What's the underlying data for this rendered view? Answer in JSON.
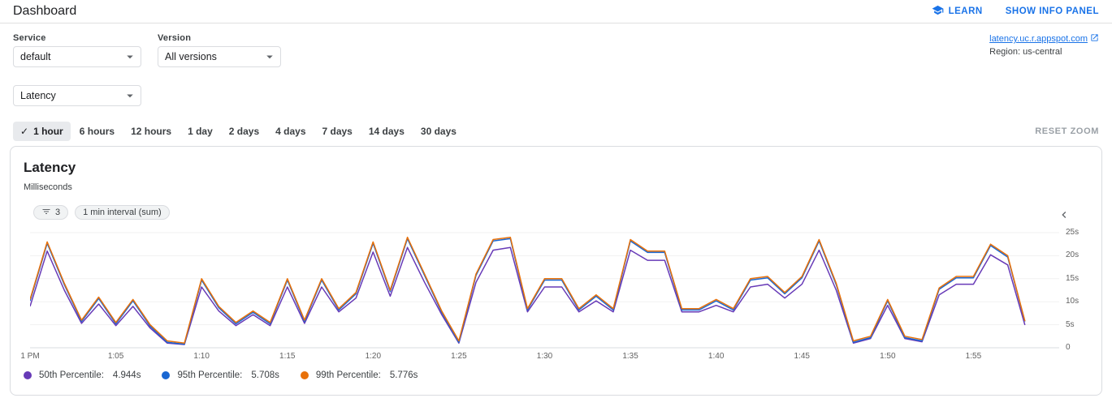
{
  "colors": {
    "accent": "#1a73e8",
    "p50": "#673ab7",
    "p95": "#1967d2",
    "p99": "#e8710a"
  },
  "header": {
    "title": "Dashboard",
    "learn_label": "LEARN",
    "info_panel_label": "SHOW INFO PANEL"
  },
  "filters": {
    "service": {
      "label": "Service",
      "value": "default"
    },
    "version": {
      "label": "Version",
      "value": "All versions"
    },
    "metric": {
      "value": "Latency"
    },
    "app_link": {
      "text": "latency.uc.r.appspot.com"
    },
    "region": "Region: us-central"
  },
  "time_ranges": {
    "options": [
      "1 hour",
      "6 hours",
      "12 hours",
      "1 day",
      "2 days",
      "4 days",
      "7 days",
      "14 days",
      "30 days"
    ],
    "selected": "1 hour",
    "reset_label": "RESET ZOOM"
  },
  "chart": {
    "title": "Latency",
    "unit": "Milliseconds",
    "filter_chip_count": "3",
    "interval_chip": "1 min interval (sum)",
    "legend": [
      {
        "label": "50th Percentile:",
        "value": "4.944s",
        "color": "#673ab7"
      },
      {
        "label": "95th Percentile:",
        "value": "5.708s",
        "color": "#1967d2"
      },
      {
        "label": "99th Percentile:",
        "value": "5.776s",
        "color": "#e8710a"
      }
    ]
  },
  "chart_data": {
    "type": "line",
    "title": "Latency",
    "ylabel": "Milliseconds",
    "unit": "seconds",
    "grid": "horizontal",
    "legend_position": "bottom",
    "x_start_label": "1 PM",
    "x_step_minutes": 1,
    "x_domain_minutes": [
      0,
      60
    ],
    "ylim": [
      0,
      25
    ],
    "y_ticks": [
      {
        "v": 0,
        "label": "0"
      },
      {
        "v": 5,
        "label": "5s"
      },
      {
        "v": 10,
        "label": "10s"
      },
      {
        "v": 15,
        "label": "15s"
      },
      {
        "v": 20,
        "label": "20s"
      },
      {
        "v": 25,
        "label": "25s"
      }
    ],
    "x_ticks": [
      {
        "m": 0,
        "label": "1 PM"
      },
      {
        "m": 5,
        "label": "1:05"
      },
      {
        "m": 10,
        "label": "1:10"
      },
      {
        "m": 15,
        "label": "1:15"
      },
      {
        "m": 20,
        "label": "1:20"
      },
      {
        "m": 25,
        "label": "1:25"
      },
      {
        "m": 30,
        "label": "1:30"
      },
      {
        "m": 35,
        "label": "1:35"
      },
      {
        "m": 40,
        "label": "1:40"
      },
      {
        "m": 45,
        "label": "1:45"
      },
      {
        "m": 50,
        "label": "1:50"
      },
      {
        "m": 55,
        "label": "1:55"
      }
    ],
    "series": [
      {
        "name": "50th Percentile",
        "color": "#673ab7",
        "current": "4.944s",
        "values": [
          9,
          21,
          12.5,
          5.3,
          9.5,
          4.8,
          9,
          4.3,
          1,
          0.7,
          13.2,
          8,
          4.8,
          7.2,
          4.8,
          13.2,
          5.3,
          13.2,
          7.8,
          10.8,
          20.8,
          11.2,
          21.8,
          14.2,
          7.2,
          1,
          14.2,
          21.2,
          21.8,
          7.8,
          13.2,
          13.2,
          7.8,
          10.2,
          7.8,
          21.2,
          19,
          19,
          7.8,
          7.8,
          9.2,
          7.8,
          13.2,
          13.8,
          10.8,
          13.8,
          21.2,
          12.5,
          1,
          2,
          9.2,
          2,
          1.3,
          11.5,
          13.8,
          13.8,
          20.2,
          18,
          4.944
        ]
      },
      {
        "name": "95th Percentile",
        "color": "#1967d2",
        "current": "5.708s",
        "values": [
          10.2,
          22.7,
          13.7,
          5.7,
          10.7,
          5.2,
          10.2,
          4.7,
          1.2,
          0.8,
          14.7,
          8.7,
          5.2,
          7.7,
          5.2,
          14.7,
          5.7,
          14.7,
          8.2,
          11.7,
          22.7,
          12.2,
          23.7,
          15.7,
          7.7,
          1.2,
          15.7,
          23.2,
          23.7,
          8.2,
          14.7,
          14.7,
          8.2,
          11.2,
          8.2,
          23.2,
          20.7,
          20.7,
          8.2,
          8.2,
          10.2,
          8.2,
          14.7,
          15.2,
          11.7,
          15.2,
          23.2,
          13.7,
          1.2,
          2.2,
          10.2,
          2.2,
          1.5,
          12.7,
          15.2,
          15.2,
          22.2,
          19.7,
          5.708
        ]
      },
      {
        "name": "99th Percentile",
        "color": "#e8710a",
        "current": "5.776s",
        "values": [
          10.5,
          23,
          14,
          6,
          11,
          5.5,
          10.5,
          5,
          1.5,
          1,
          15,
          9,
          5.5,
          8,
          5.5,
          15,
          6,
          15,
          8.5,
          12,
          23,
          12.5,
          24,
          16,
          8,
          1.5,
          16,
          23.5,
          24,
          8.5,
          15,
          15,
          8.5,
          11.5,
          8.5,
          23.5,
          21,
          21,
          8.5,
          8.5,
          10.5,
          8.5,
          15,
          15.5,
          12,
          15.5,
          23.5,
          14,
          1.5,
          2.5,
          10.5,
          2.5,
          1.8,
          13,
          15.5,
          15.5,
          22.5,
          20,
          5.776
        ]
      }
    ]
  }
}
